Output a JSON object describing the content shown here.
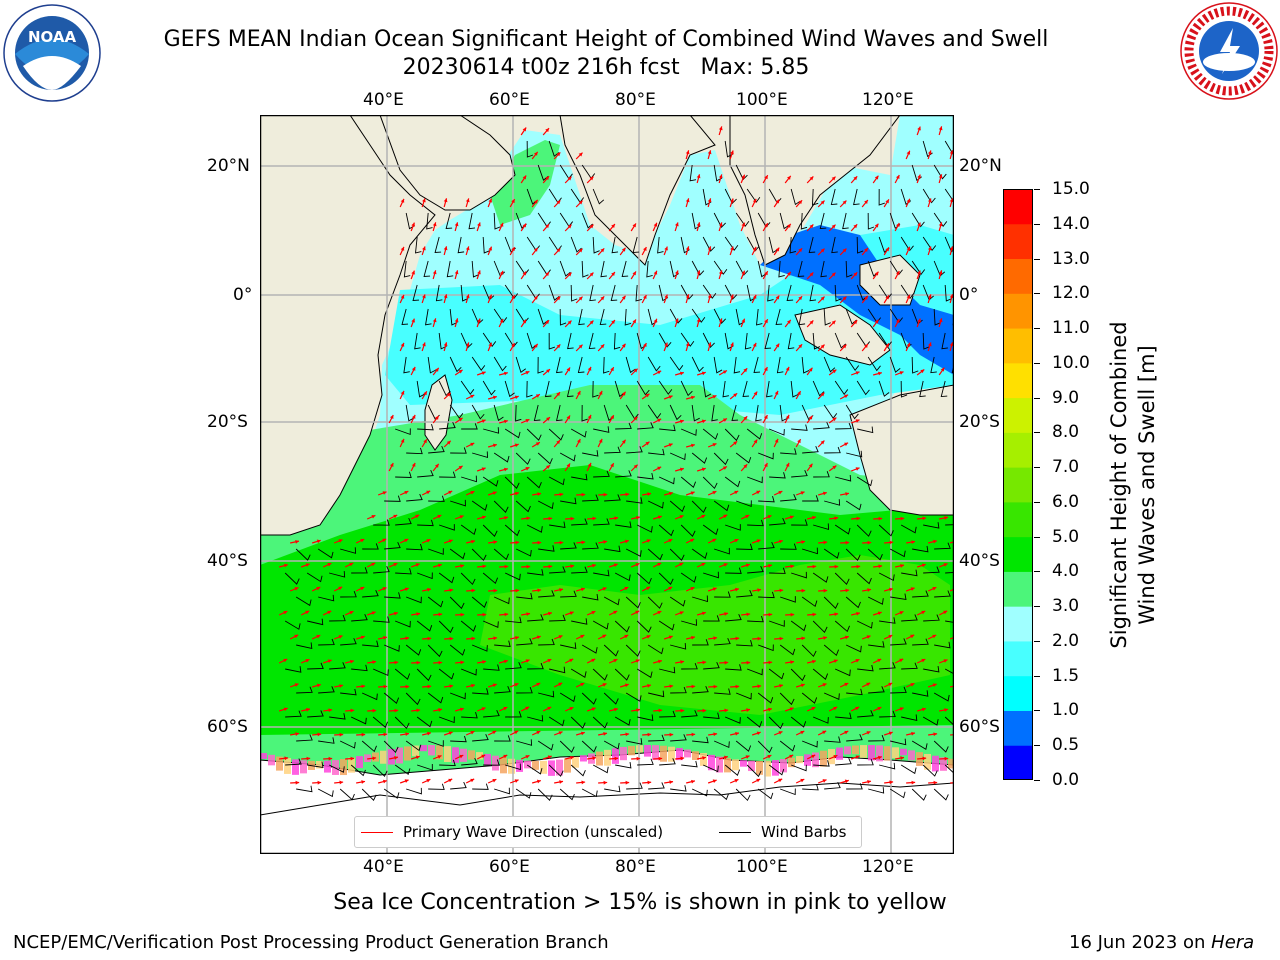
{
  "title": {
    "line1": "GEFS MEAN Indian Ocean Significant Height of Combined Wind Waves and Swell",
    "line2": "20230614 t00z 216h fcst   Max: 5.85"
  },
  "logos": {
    "left": "NOAA",
    "right_name": "national-weather-service-logo",
    "right_text": "NATIONAL WEATHER SERVICE"
  },
  "axes": {
    "lon_ticks": [
      "40°E",
      "60°E",
      "80°E",
      "100°E",
      "120°E"
    ],
    "lat_ticks": [
      "20°N",
      "0°",
      "20°S",
      "40°S",
      "60°S"
    ]
  },
  "colorbar": {
    "label_line1": "Significant Height of Combined",
    "label_line2": "Wind Waves and Swell [m]",
    "ticks": [
      "15.0",
      "14.0",
      "13.0",
      "12.0",
      "11.0",
      "10.0",
      "9.0",
      "8.0",
      "7.0",
      "6.0",
      "5.0",
      "4.0",
      "3.0",
      "2.0",
      "1.5",
      "1.0",
      "0.5",
      "0.0"
    ],
    "colors": [
      "#0000ff",
      "#0070ff",
      "#00ffff",
      "#48ffff",
      "#a0ffff",
      "#4cf57a",
      "#00e600",
      "#38e600",
      "#76e800",
      "#a6ef00",
      "#ccf200",
      "#e8f200",
      "#fff500",
      "#ffe000",
      "#ffbe00",
      "#ff9400",
      "#ff6a00",
      "#ff3000",
      "#ff0000"
    ]
  },
  "legend": {
    "wave_label": "Primary Wave Direction (unscaled)",
    "wind_label": "Wind Barbs",
    "wave_color": "#ff0000",
    "wind_color": "#000000"
  },
  "caption": "Sea Ice Concentration > 15% is shown in pink to yellow",
  "footer": {
    "left": "NCEP/EMC/Verification Post Processing Product Generation Branch",
    "date": "16 Jun 2023 on ",
    "machine": "Hera"
  }
}
